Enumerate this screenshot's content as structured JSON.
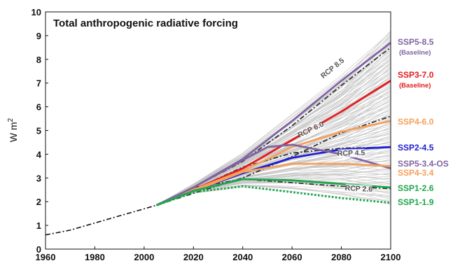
{
  "chart_data": {
    "type": "line",
    "title": "Total anthropogenic radiative forcing",
    "ylabel": "W m",
    "ylabel_sup": "2",
    "xlim": [
      1960,
      2100
    ],
    "ylim": [
      0,
      10
    ],
    "xticks": [
      1960,
      1980,
      2000,
      2020,
      2040,
      2060,
      2080,
      2100
    ],
    "yticks": [
      0,
      1,
      2,
      3,
      4,
      5,
      6,
      7,
      8,
      9,
      10
    ],
    "grid": false,
    "legend": "right",
    "colors": {
      "ssp5_85": "#8064a2",
      "ssp3_70": "#e41a1c",
      "ssp4_60": "#f5a05a",
      "ssp2_45": "#1f1fd6",
      "ssp5_34os": "#8064a2",
      "ssp4_34": "#f5a05a",
      "ssp1_26": "#1ca64c",
      "ssp1_19": "#1ca64c",
      "rcp": "#333333",
      "ensemble": "#c8c8c8"
    },
    "historical": {
      "x": [
        1960,
        1970,
        1980,
        1990,
        2000,
        2005
      ],
      "y": [
        0.6,
        0.8,
        1.1,
        1.4,
        1.7,
        1.85
      ]
    },
    "series": [
      {
        "id": "ssp5_85",
        "name": "SSP5-8.5",
        "sublabel": "(Baseline)",
        "style": "solid",
        "x": [
          2005,
          2020,
          2040,
          2060,
          2080,
          2100
        ],
        "y": [
          1.85,
          2.6,
          3.8,
          5.4,
          7.1,
          8.7
        ]
      },
      {
        "id": "ssp3_70",
        "name": "SSP3-7.0",
        "sublabel": "(Baseline)",
        "style": "solid",
        "x": [
          2005,
          2020,
          2040,
          2060,
          2080,
          2100
        ],
        "y": [
          1.85,
          2.5,
          3.4,
          4.6,
          5.8,
          7.1
        ]
      },
      {
        "id": "ssp4_60",
        "name": "SSP4-6.0",
        "sublabel": "",
        "style": "solid",
        "x": [
          2005,
          2020,
          2040,
          2060,
          2080,
          2100
        ],
        "y": [
          1.85,
          2.5,
          3.3,
          4.3,
          4.95,
          5.4
        ]
      },
      {
        "id": "ssp2_45",
        "name": "SSP2-4.5",
        "sublabel": "",
        "style": "solid",
        "x": [
          2005,
          2020,
          2040,
          2060,
          2080,
          2100
        ],
        "y": [
          1.85,
          2.45,
          3.2,
          3.85,
          4.2,
          4.3
        ]
      },
      {
        "id": "ssp5_34os",
        "name": "SSP5-3.4-OS",
        "sublabel": "",
        "style": "solid",
        "x": [
          2005,
          2020,
          2040,
          2050,
          2060,
          2080,
          2100
        ],
        "y": [
          1.85,
          2.6,
          3.75,
          4.3,
          4.4,
          4.0,
          3.4
        ]
      },
      {
        "id": "ssp4_34",
        "name": "SSP4-3.4",
        "sublabel": "",
        "style": "solid",
        "x": [
          2005,
          2020,
          2040,
          2060,
          2080,
          2100
        ],
        "y": [
          1.85,
          2.45,
          3.25,
          3.6,
          3.6,
          3.5
        ]
      },
      {
        "id": "ssp1_26",
        "name": "SSP1-2.6",
        "sublabel": "",
        "style": "solid",
        "x": [
          2005,
          2020,
          2040,
          2060,
          2080,
          2100
        ],
        "y": [
          1.85,
          2.45,
          2.95,
          2.9,
          2.75,
          2.6
        ]
      },
      {
        "id": "ssp1_19",
        "name": "SSP1-1.9",
        "sublabel": "",
        "style": "dotted",
        "x": [
          2005,
          2020,
          2040,
          2060,
          2080,
          2100
        ],
        "y": [
          1.85,
          2.4,
          2.65,
          2.4,
          2.15,
          1.95
        ]
      }
    ],
    "rcp_series": [
      {
        "id": "rcp85",
        "name": "RCP 8.5",
        "x": [
          2005,
          2020,
          2040,
          2060,
          2080,
          2100
        ],
        "y": [
          1.85,
          2.6,
          3.7,
          5.2,
          6.9,
          8.5
        ],
        "label_at": [
          2077,
          7.55
        ]
      },
      {
        "id": "rcp60",
        "name": "RCP 6.0",
        "x": [
          2005,
          2020,
          2040,
          2060,
          2080,
          2100
        ],
        "y": [
          1.85,
          2.35,
          3.0,
          3.9,
          4.9,
          5.6
        ],
        "label_at": [
          2068,
          4.95
        ]
      },
      {
        "id": "rcp45",
        "name": "RCP 4.5",
        "x": [
          2005,
          2020,
          2040,
          2060,
          2080,
          2100
        ],
        "y": [
          1.85,
          2.5,
          3.45,
          4.05,
          4.25,
          4.3
        ],
        "label_at": [
          2084,
          3.95
        ]
      },
      {
        "id": "rcp26",
        "name": "RCP 2.6",
        "x": [
          2005,
          2020,
          2040,
          2060,
          2080,
          2100
        ],
        "y": [
          1.85,
          2.6,
          2.95,
          2.8,
          2.65,
          2.55
        ],
        "label_at": [
          2087,
          2.45
        ]
      }
    ],
    "legend_entries": [
      {
        "series": "ssp5_85",
        "name": "SSP5-8.5",
        "sublabel": "(Baseline)"
      },
      {
        "series": "ssp3_70",
        "name": "SSP3-7.0",
        "sublabel": "(Baseline)"
      },
      {
        "series": "ssp4_60",
        "name": "SSP4-6.0",
        "sublabel": ""
      },
      {
        "series": "ssp2_45",
        "name": "SSP2-4.5",
        "sublabel": ""
      },
      {
        "series": "ssp5_34os",
        "name": "SSP5-3.4-OS",
        "sublabel": ""
      },
      {
        "series": "ssp4_34",
        "name": "SSP4-3.4",
        "sublabel": ""
      },
      {
        "series": "ssp1_26",
        "name": "SSP1-2.6",
        "sublabel": ""
      },
      {
        "series": "ssp1_19",
        "name": "SSP1-1.9",
        "sublabel": ""
      }
    ]
  }
}
